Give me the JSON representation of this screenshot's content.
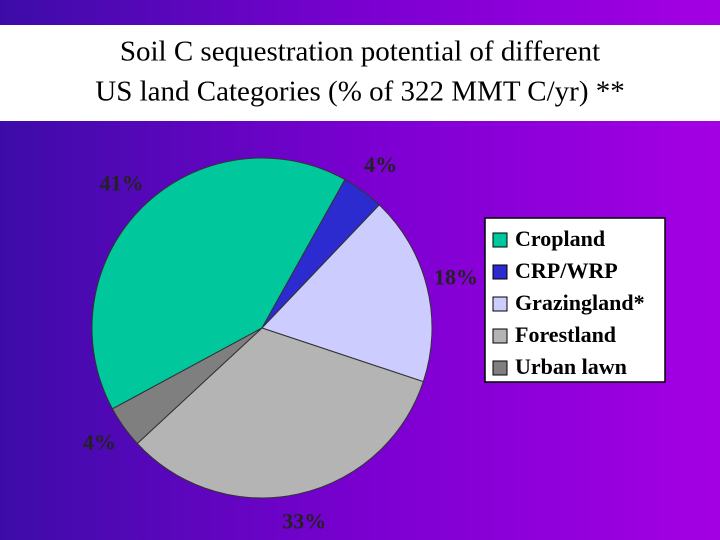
{
  "chart_data": {
    "type": "pie",
    "title": [
      "Soil C sequestration potential of  different",
      "US land Categories (% of  322 MMT C/yr) **"
    ],
    "categories": [
      "Cropland",
      "CRP/WRP",
      "Grazingland*",
      "Forestland",
      "Urban lawn"
    ],
    "values": [
      41,
      4,
      18,
      33,
      4
    ],
    "value_labels": [
      "41%",
      "4%",
      "18%",
      "33%",
      "4%"
    ],
    "colors": [
      "#00c89c",
      "#2b2bd0",
      "#ccccff",
      "#b4b4b4",
      "#7f7f7f"
    ],
    "legend": "right"
  }
}
